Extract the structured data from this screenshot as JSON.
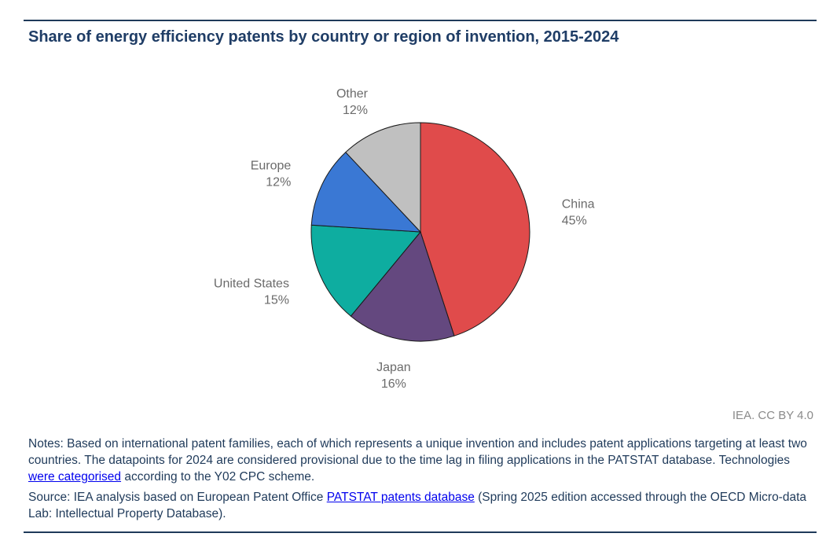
{
  "title": "Share of energy efficiency patents by country or region of invention, 2015-2024",
  "credit": "IEA. CC BY 4.0",
  "notes": {
    "part1": "Notes: Based on international patent families, each of which represents a unique invention and includes patent applications targeting at least two countries. The datapoints for 2024 are considered provisional due to the time lag in filing applications in the PATSTAT database. Technologies ",
    "link1": "were categorised",
    "part2": " according to the Y02 CPC scheme."
  },
  "source": {
    "part1": "Source: IEA analysis based on European Patent Office ",
    "link": "PATSTAT patents database",
    "part2": " (Spring 2025 edition accessed through the OECD Micro-data Lab: Intellectual Property Database)."
  },
  "chart_data": {
    "type": "pie",
    "title": "Share of energy efficiency patents by country or region of invention, 2015-2024",
    "start_angle_deg": 0,
    "direction": "clockwise",
    "slices": [
      {
        "label": "China",
        "value": 45,
        "display": "45%",
        "color": "#e04b4b"
      },
      {
        "label": "Japan",
        "value": 16,
        "display": "16%",
        "color": "#64487f"
      },
      {
        "label": "United States",
        "value": 15,
        "display": "15%",
        "color": "#0eada0"
      },
      {
        "label": "Europe",
        "value": 12,
        "display": "12%",
        "color": "#3a78d4"
      },
      {
        "label": "Other",
        "value": 12,
        "display": "12%",
        "color": "#c0c0c0"
      }
    ]
  }
}
